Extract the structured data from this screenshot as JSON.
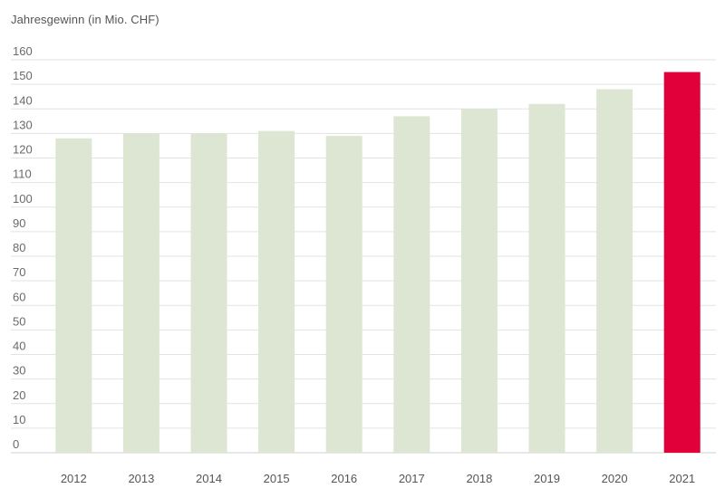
{
  "chart_data": {
    "type": "bar",
    "title": "Jahresgewinn (in Mio. CHF)",
    "xlabel": "",
    "ylabel": "",
    "categories": [
      "2012",
      "2013",
      "2014",
      "2015",
      "2016",
      "2017",
      "2018",
      "2019",
      "2020",
      "2021"
    ],
    "values": [
      128,
      130,
      130,
      131,
      129,
      137,
      140,
      142,
      148,
      155
    ],
    "ylim": [
      0,
      160
    ],
    "yticks": [
      0,
      10,
      20,
      30,
      40,
      50,
      60,
      70,
      80,
      90,
      100,
      110,
      120,
      130,
      140,
      150,
      160
    ],
    "grid": true,
    "colors": {
      "default_bar": "#dce6d3",
      "highlight_bar": "#e2003a",
      "grid": "#e3e3e3",
      "axis": "#cfcfcf"
    },
    "highlight_category": "2021"
  }
}
